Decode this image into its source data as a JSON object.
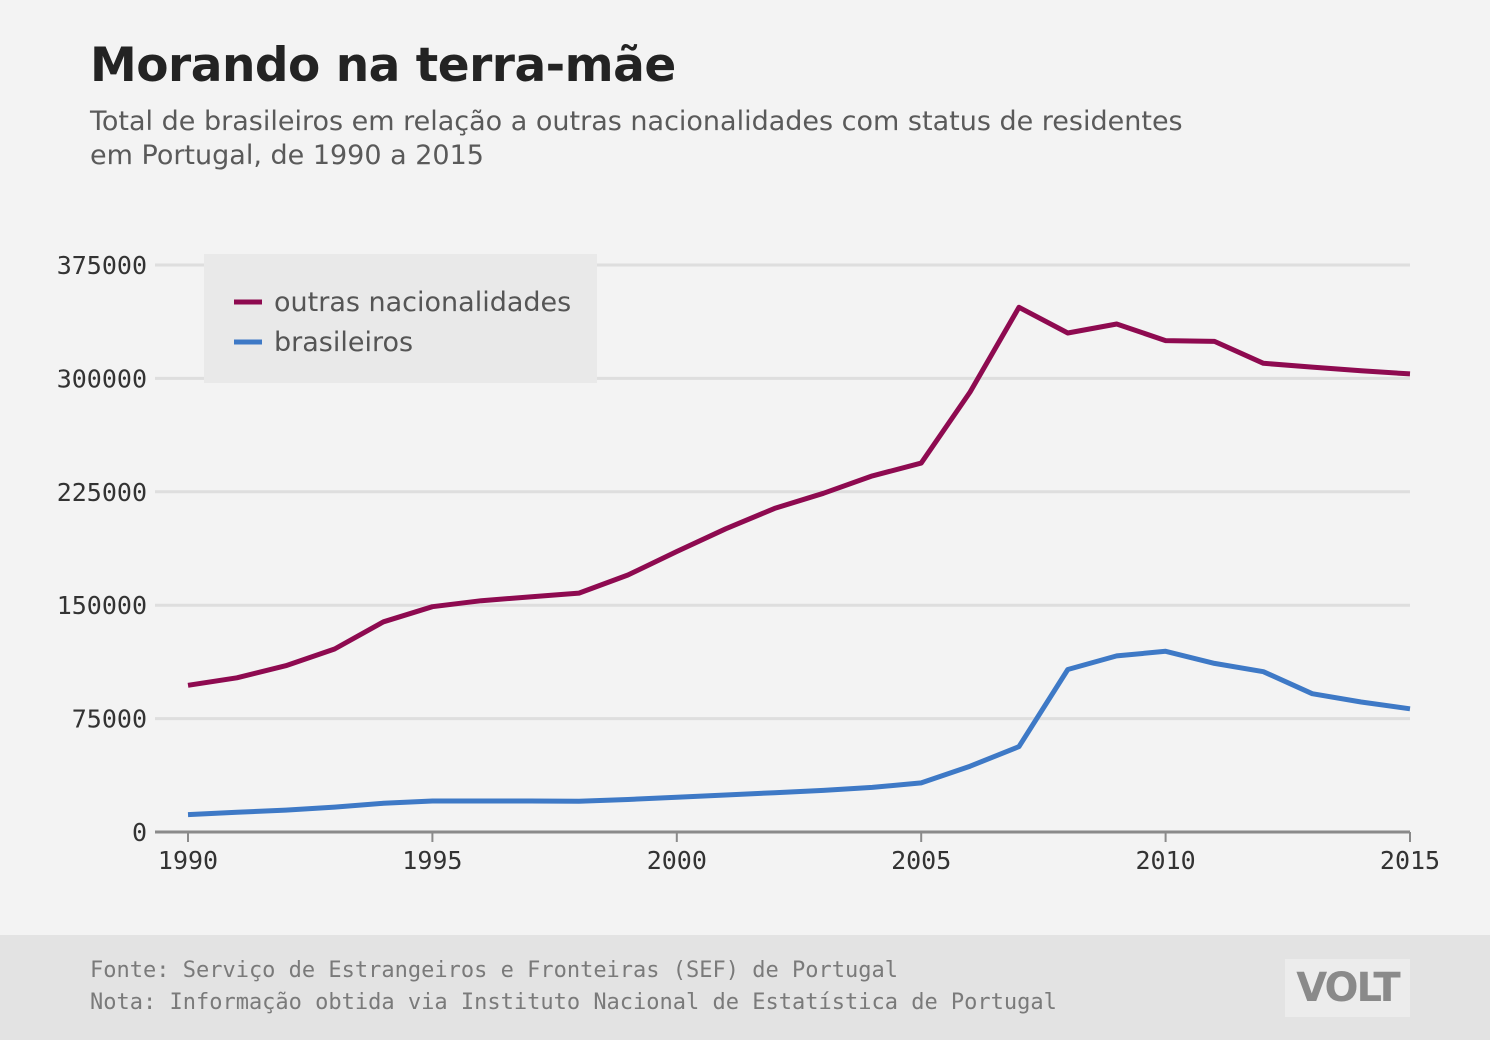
{
  "header": {
    "title": "Morando na terra-mãe",
    "subtitle_line1": "Total de brasileiros em relação a outras nacionalidades com status de residentes",
    "subtitle_line2": "em Portugal, de 1990 a 2015"
  },
  "chart_data": {
    "type": "line",
    "x": [
      1990,
      1991,
      1992,
      1993,
      1994,
      1995,
      1996,
      1997,
      1998,
      1999,
      2000,
      2001,
      2002,
      2003,
      2004,
      2005,
      2006,
      2007,
      2008,
      2009,
      2010,
      2011,
      2012,
      2013,
      2014,
      2015
    ],
    "series": [
      {
        "name": "outras nacionalidades",
        "color": "#8e0a50",
        "values": [
          97000,
          102000,
          110000,
          121000,
          139000,
          149000,
          153000,
          155500,
          158000,
          170000,
          185500,
          200500,
          214000,
          224000,
          235500,
          244000,
          291000,
          347000,
          330000,
          336000,
          325000,
          324500,
          310000,
          307500,
          305000,
          303000
        ]
      },
      {
        "name": "brasileiros",
        "color": "#3e79c6",
        "values": [
          11500,
          13000,
          14500,
          16500,
          19000,
          20500,
          20500,
          20500,
          20300,
          21500,
          23000,
          24500,
          26000,
          27500,
          29500,
          32500,
          43500,
          56500,
          107500,
          116500,
          119500,
          111500,
          106000,
          91500,
          86000,
          81500
        ]
      }
    ],
    "y_ticks": [
      "0",
      "75000",
      "150000",
      "225000",
      "300000",
      "375000"
    ],
    "x_ticks": [
      "1990",
      "1995",
      "2000",
      "2005",
      "2010",
      "2015"
    ],
    "xlim": [
      1990,
      2015
    ],
    "ylim": [
      0,
      375000
    ],
    "grid": true,
    "legend_position": "top-left"
  },
  "footer": {
    "source": "Fonte: Serviço de Estrangeiros e Fronteiras (SEF) de Portugal",
    "note": "Nota: Informação obtida via Instituto Nacional de Estatística de Portugal",
    "logo": "VOLT"
  }
}
